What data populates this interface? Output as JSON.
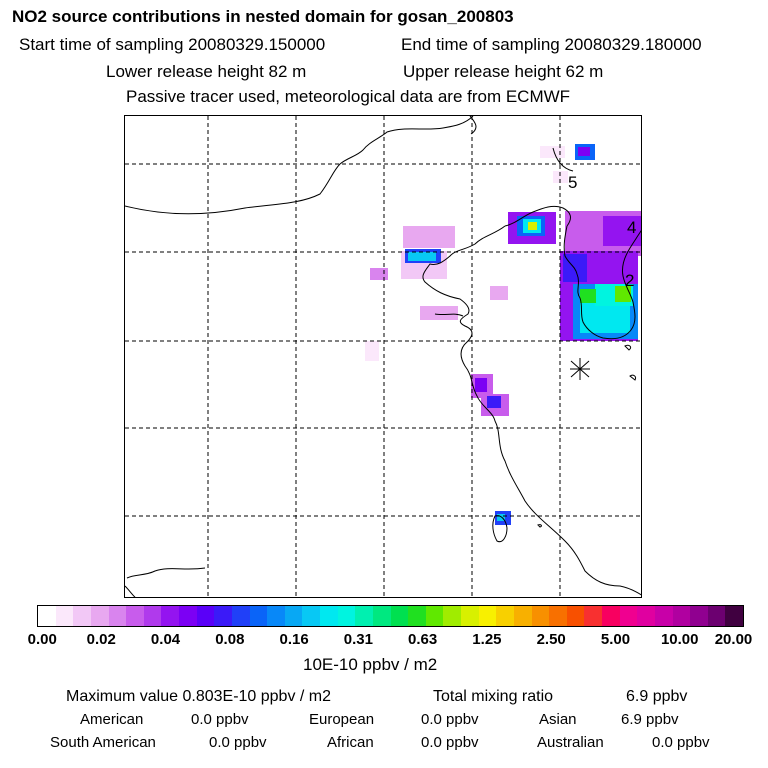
{
  "header": {
    "title": "NO2 source contributions in nested domain for gosan_200803",
    "start_label": "Start time of sampling 20080329.150000",
    "end_label": "End time of sampling 20080329.180000",
    "lower_label": "Lower release height   82 m",
    "upper_label": "Upper release height   62 m",
    "tracer_note": "Passive tracer used, meteorological data are from ECMWF"
  },
  "map": {
    "labels": [
      "5",
      "4",
      "2"
    ],
    "receptor_marker": "asterisk-star"
  },
  "colorbar": {
    "ticks": [
      "0.00",
      "0.02",
      "0.04",
      "0.08",
      "0.16",
      "0.31",
      "0.63",
      "1.25",
      "2.50",
      "5.00",
      "10.00",
      "20.00"
    ],
    "unit": "10E-10 ppbv / m2",
    "colors": [
      "#ffffff",
      "#fbe8fb",
      "#f2c8f6",
      "#e8a8f0",
      "#d984ee",
      "#c85cec",
      "#b03aec",
      "#9414f0",
      "#7c00f4",
      "#5a00f8",
      "#3b1af8",
      "#2040f8",
      "#0a64f8",
      "#0888f8",
      "#08a8f4",
      "#08c8f4",
      "#00e8f0",
      "#00f4e0",
      "#00f0b0",
      "#00e880",
      "#00e050",
      "#20e020",
      "#60e800",
      "#a0ec00",
      "#d8f000",
      "#f8f000",
      "#f8d000",
      "#f8b000",
      "#f89000",
      "#f87000",
      "#f85000",
      "#f83030",
      "#f80060",
      "#f00090",
      "#e000a0",
      "#c800a8",
      "#b000a0",
      "#900090",
      "#6c0070",
      "#400040"
    ]
  },
  "stats": {
    "maximum_label": "Maximum value  0.803E-10 ppbv / m2",
    "total_label": "Total mixing ratio",
    "total_value": "6.9 ppbv",
    "rows": [
      {
        "name": "American",
        "value": "0.0 ppbv"
      },
      {
        "name": "European",
        "value": "0.0 ppbv"
      },
      {
        "name": "Asian",
        "value": "6.9 ppbv"
      },
      {
        "name": "South American",
        "value": "0.0 ppbv"
      },
      {
        "name": "African",
        "value": "0.0 ppbv"
      },
      {
        "name": "Australian",
        "value": "0.0 ppbv"
      }
    ]
  }
}
